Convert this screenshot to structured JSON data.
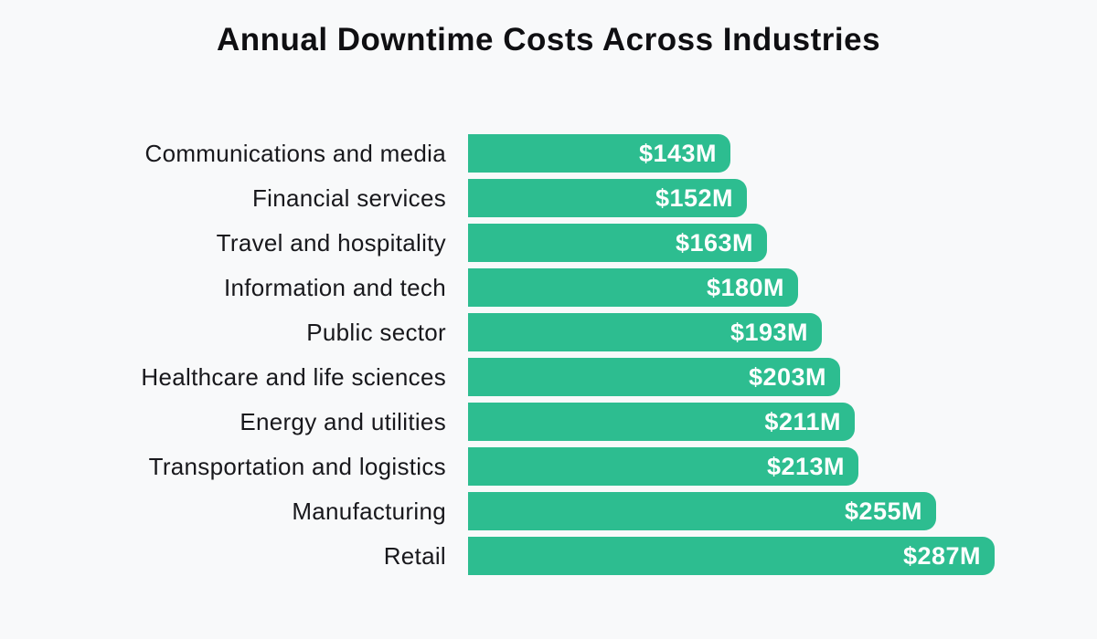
{
  "title": "Annual Downtime Costs Across Industries",
  "chart_data": {
    "type": "bar",
    "orientation": "horizontal",
    "title": "Annual Downtime Costs Across Industries",
    "xlabel": "",
    "ylabel": "",
    "categories": [
      "Communications and media",
      "Financial services",
      "Travel and hospitality",
      "Information and tech",
      "Public sector",
      "Healthcare and life sciences",
      "Energy and utilities",
      "Transportation and logistics",
      "Manufacturing",
      "Retail"
    ],
    "values": [
      143,
      152,
      163,
      180,
      193,
      203,
      211,
      213,
      255,
      287
    ],
    "value_labels": [
      "$143M",
      "$152M",
      "$163M",
      "$180M",
      "$193M",
      "$203M",
      "$211M",
      "$213M",
      "$255M",
      "$287M"
    ],
    "unit": "USD millions",
    "xlim": [
      0,
      287
    ],
    "grid": false,
    "legend": false,
    "bar_color": "#2dbd90",
    "value_label_color": "#ffffff",
    "label_color": "#18181c",
    "background_color": "#f8f9fa"
  }
}
